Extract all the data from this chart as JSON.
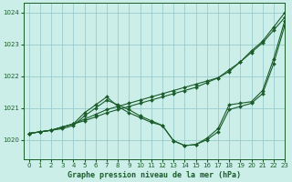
{
  "title": "Graphe pression niveau de la mer (hPa)",
  "background_color": "#cceee8",
  "grid_color": "#99cccc",
  "line_color": "#1a5c2a",
  "xlim": [
    -0.5,
    23
  ],
  "ylim": [
    1019.4,
    1024.3
  ],
  "yticks": [
    1020,
    1021,
    1022,
    1023,
    1024
  ],
  "xticks": [
    0,
    1,
    2,
    3,
    4,
    5,
    6,
    7,
    8,
    9,
    10,
    11,
    12,
    13,
    14,
    15,
    16,
    17,
    18,
    19,
    20,
    21,
    22,
    23
  ],
  "series": [
    {
      "x": [
        0,
        1,
        2,
        3,
        4,
        5,
        6,
        7,
        8,
        9,
        10,
        11,
        12,
        13,
        14,
        15,
        16,
        17,
        18,
        19,
        20,
        21,
        22,
        23
      ],
      "y": [
        1020.2,
        1020.25,
        1020.3,
        1020.4,
        1020.5,
        1020.85,
        1021.1,
        1021.35,
        1021.05,
        1020.85,
        1020.7,
        1020.55,
        1020.45,
        1019.97,
        1019.82,
        1019.85,
        1020.05,
        1020.35,
        1021.1,
        1021.15,
        1021.2,
        1021.55,
        1022.55,
        1023.75
      ]
    },
    {
      "x": [
        0,
        1,
        2,
        3,
        4,
        5,
        6,
        7,
        8,
        9,
        10,
        11,
        12,
        13,
        14,
        15,
        16,
        17,
        18,
        19,
        20,
        21,
        22,
        23
      ],
      "y": [
        1020.2,
        1020.25,
        1020.3,
        1020.35,
        1020.45,
        1020.75,
        1021.0,
        1021.25,
        1021.1,
        1020.95,
        1020.75,
        1020.6,
        1020.45,
        1019.97,
        1019.82,
        1019.85,
        1020.0,
        1020.25,
        1020.95,
        1021.05,
        1021.15,
        1021.45,
        1022.4,
        1023.6
      ]
    },
    {
      "x": [
        0,
        1,
        2,
        3,
        4,
        5,
        6,
        7,
        8,
        9,
        10,
        11,
        12,
        13,
        14,
        15,
        16,
        17,
        18,
        19,
        20,
        21,
        22,
        23
      ],
      "y": [
        1020.2,
        1020.25,
        1020.3,
        1020.4,
        1020.5,
        1020.65,
        1020.8,
        1020.95,
        1021.05,
        1021.15,
        1021.25,
        1021.35,
        1021.45,
        1021.55,
        1021.65,
        1021.75,
        1021.85,
        1021.95,
        1022.15,
        1022.45,
        1022.8,
        1023.1,
        1023.55,
        1024.0
      ]
    },
    {
      "x": [
        0,
        1,
        2,
        3,
        4,
        5,
        6,
        7,
        8,
        9,
        10,
        11,
        12,
        13,
        14,
        15,
        16,
        17,
        18,
        19,
        20,
        21,
        22,
        23
      ],
      "y": [
        1020.2,
        1020.25,
        1020.3,
        1020.4,
        1020.5,
        1020.6,
        1020.72,
        1020.85,
        1020.95,
        1021.05,
        1021.15,
        1021.25,
        1021.35,
        1021.45,
        1021.55,
        1021.65,
        1021.8,
        1021.95,
        1022.2,
        1022.45,
        1022.75,
        1023.05,
        1023.45,
        1023.85
      ]
    }
  ]
}
